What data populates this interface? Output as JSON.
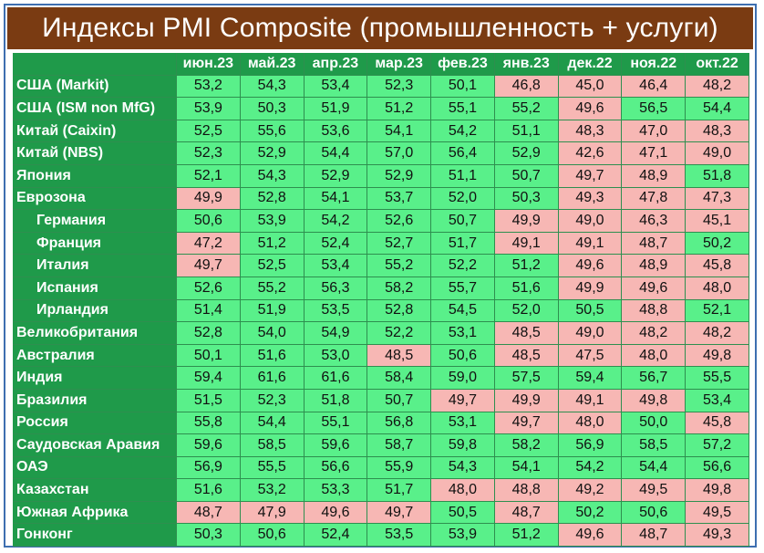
{
  "title": "Индексы PMI Composite (промышленность + услуги)",
  "colors": {
    "title_bg": "#7a3b12",
    "header_bg": "#1f9a4a",
    "above50": "#59f08a",
    "below50": "#f7b7b4",
    "frame": "#3e6fb0"
  },
  "chart_data": {
    "type": "table",
    "title": "Индексы PMI Composite (промышленность + услуги)",
    "columns": [
      "июн.23",
      "май.23",
      "апр.23",
      "мар.23",
      "фев.23",
      "янв.23",
      "дек.22",
      "ноя.22",
      "окт.22"
    ],
    "rows": [
      {
        "name": "США (Markit)",
        "indent": false,
        "values": [
          "53,2",
          "54,3",
          "53,4",
          "52,3",
          "50,1",
          "46,8",
          "45,0",
          "46,4",
          "48,2"
        ]
      },
      {
        "name": "США (ISM non MfG)",
        "indent": false,
        "values": [
          "53,9",
          "50,3",
          "51,9",
          "51,2",
          "55,1",
          "55,2",
          "49,6",
          "56,5",
          "54,4"
        ]
      },
      {
        "name": "Китай (Caixin)",
        "indent": false,
        "values": [
          "52,5",
          "55,6",
          "53,6",
          "54,1",
          "54,2",
          "51,1",
          "48,3",
          "47,0",
          "48,3"
        ]
      },
      {
        "name": "Китай (NBS)",
        "indent": false,
        "values": [
          "52,3",
          "52,9",
          "54,4",
          "57,0",
          "56,4",
          "52,9",
          "42,6",
          "47,1",
          "49,0"
        ]
      },
      {
        "name": "Япония",
        "indent": false,
        "values": [
          "52,1",
          "54,3",
          "52,9",
          "52,9",
          "51,1",
          "50,7",
          "49,7",
          "48,9",
          "51,8"
        ]
      },
      {
        "name": "Еврозона",
        "indent": false,
        "values": [
          "49,9",
          "52,8",
          "54,1",
          "53,7",
          "52,0",
          "50,3",
          "49,3",
          "47,8",
          "47,3"
        ]
      },
      {
        "name": "Германия",
        "indent": true,
        "values": [
          "50,6",
          "53,9",
          "54,2",
          "52,6",
          "50,7",
          "49,9",
          "49,0",
          "46,3",
          "45,1"
        ]
      },
      {
        "name": "Франция",
        "indent": true,
        "values": [
          "47,2",
          "51,2",
          "52,4",
          "52,7",
          "51,7",
          "49,1",
          "49,1",
          "48,7",
          "50,2"
        ]
      },
      {
        "name": "Италия",
        "indent": true,
        "values": [
          "49,7",
          "52,5",
          "53,4",
          "55,2",
          "52,2",
          "51,2",
          "49,6",
          "48,9",
          "45,8"
        ]
      },
      {
        "name": "Испания",
        "indent": true,
        "values": [
          "52,6",
          "55,2",
          "56,3",
          "58,2",
          "55,7",
          "51,6",
          "49,9",
          "49,6",
          "48,0"
        ]
      },
      {
        "name": "Ирландия",
        "indent": true,
        "values": [
          "51,4",
          "51,9",
          "53,5",
          "52,8",
          "54,5",
          "52,0",
          "50,5",
          "48,8",
          "52,1"
        ]
      },
      {
        "name": "Великобритания",
        "indent": false,
        "values": [
          "52,8",
          "54,0",
          "54,9",
          "52,2",
          "53,1",
          "48,5",
          "49,0",
          "48,2",
          "48,2"
        ]
      },
      {
        "name": "Австралия",
        "indent": false,
        "values": [
          "50,1",
          "51,6",
          "53,0",
          "48,5",
          "50,6",
          "48,5",
          "47,5",
          "48,0",
          "49,8"
        ]
      },
      {
        "name": "Индия",
        "indent": false,
        "values": [
          "59,4",
          "61,6",
          "61,6",
          "58,4",
          "59,0",
          "57,5",
          "59,4",
          "56,7",
          "55,5"
        ]
      },
      {
        "name": "Бразилия",
        "indent": false,
        "values": [
          "51,5",
          "52,3",
          "51,8",
          "50,7",
          "49,7",
          "49,9",
          "49,1",
          "49,8",
          "53,4"
        ]
      },
      {
        "name": "Россия",
        "indent": false,
        "values": [
          "55,8",
          "54,4",
          "55,1",
          "56,8",
          "53,1",
          "49,7",
          "48,0",
          "50,0",
          "45,8"
        ]
      },
      {
        "name": "Саудовская Аравия",
        "indent": false,
        "values": [
          "59,6",
          "58,5",
          "59,6",
          "58,7",
          "59,8",
          "58,2",
          "56,9",
          "58,5",
          "57,2"
        ]
      },
      {
        "name": "ОАЭ",
        "indent": false,
        "values": [
          "56,9",
          "55,5",
          "56,6",
          "55,9",
          "54,3",
          "54,1",
          "54,2",
          "54,4",
          "56,6"
        ]
      },
      {
        "name": "Казахстан",
        "indent": false,
        "values": [
          "51,6",
          "53,2",
          "53,3",
          "51,7",
          "48,0",
          "48,8",
          "49,2",
          "49,5",
          "49,8"
        ]
      },
      {
        "name": "Южная Африка",
        "indent": false,
        "values": [
          "48,7",
          "47,9",
          "49,6",
          "49,7",
          "50,5",
          "48,7",
          "50,2",
          "50,6",
          "49,5"
        ]
      },
      {
        "name": "Гонконг",
        "indent": false,
        "values": [
          "50,3",
          "50,6",
          "52,4",
          "53,5",
          "53,9",
          "51,2",
          "49,6",
          "48,7",
          "49,3"
        ]
      }
    ]
  }
}
